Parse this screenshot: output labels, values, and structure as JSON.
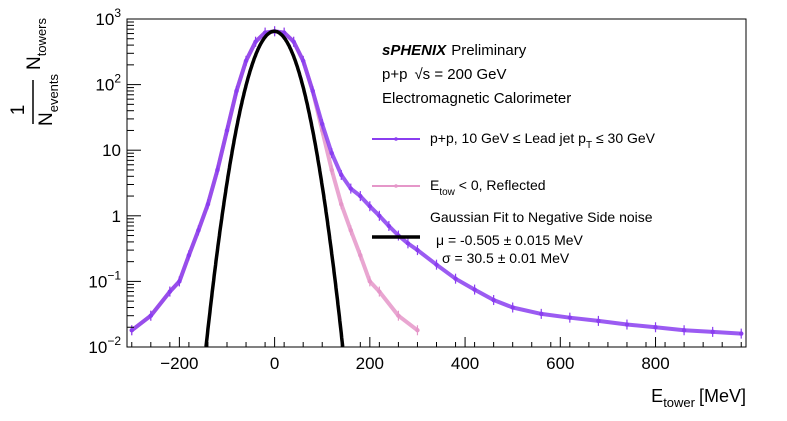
{
  "chart_data": {
    "type": "scatter",
    "title": "",
    "xlabel": {
      "main": "E",
      "sub": "tower",
      "unit": "[MeV]"
    },
    "ylabel": {
      "numerator": "1",
      "denominator_main": "N",
      "denominator_sub": "events",
      "right_main": "N",
      "right_sub": "towers"
    },
    "xlim": [
      -310,
      990
    ],
    "ylim": [
      0.01,
      1000
    ],
    "yscale": "log",
    "grid": false,
    "x_ticks": [
      {
        "value": -200,
        "label": "−200"
      },
      {
        "value": 0,
        "label": "0"
      },
      {
        "value": 200,
        "label": "200"
      },
      {
        "value": 400,
        "label": "400"
      },
      {
        "value": 600,
        "label": "600"
      },
      {
        "value": 800,
        "label": "800"
      }
    ],
    "y_ticks": [
      {
        "value": 0.01,
        "base": "10",
        "exp": "−2"
      },
      {
        "value": 0.1,
        "base": "10",
        "exp": "−1"
      },
      {
        "value": 1,
        "label": "1"
      },
      {
        "value": 10,
        "label": "10"
      },
      {
        "value": 100,
        "base": "10",
        "exp": "2"
      },
      {
        "value": 1000,
        "base": "10",
        "exp": "3"
      }
    ],
    "annotations": {
      "experiment": "sPHENIX",
      "status": "Preliminary",
      "system": "p+p",
      "sqrt": "√s",
      "energy": " = 200 GeV",
      "detector": "Electromagnetic Calorimeter"
    },
    "legend": {
      "position": "right",
      "entries": [
        {
          "kind": "pp",
          "text_a": "p+p, 10 GeV ≤ Lead jet p",
          "sub": "T",
          "text_b": " ≤ 30 GeV"
        },
        {
          "kind": "reflected",
          "text_a": "E",
          "sub": "tow",
          "text_b": " < 0, Reflected"
        },
        {
          "kind": "fit",
          "line1": "Gaussian Fit to Negative Side noise",
          "line2": "μ = -0.505 ± 0.015 MeV",
          "line3": "σ = 30.5 ± 0.01 MeV"
        }
      ]
    },
    "series": [
      {
        "name": "p+p, 10 GeV ≤ Lead jet pT ≤ 30 GeV",
        "color": "#8a3ef0",
        "x": [
          -300,
          -260,
          -220,
          -200,
          -180,
          -160,
          -140,
          -120,
          -100,
          -80,
          -60,
          -40,
          -20,
          0,
          20,
          40,
          60,
          80,
          100,
          120,
          140,
          160,
          180,
          200,
          220,
          240,
          260,
          280,
          300,
          340,
          380,
          420,
          460,
          500,
          560,
          620,
          680,
          740,
          800,
          860,
          920,
          980
        ],
        "y": [
          0.018,
          0.03,
          0.07,
          0.1,
          0.25,
          0.6,
          1.5,
          5,
          20,
          80,
          230,
          450,
          620,
          650,
          620,
          450,
          230,
          80,
          25,
          9,
          4.2,
          2.6,
          2,
          1.4,
          1.0,
          0.7,
          0.5,
          0.38,
          0.3,
          0.18,
          0.11,
          0.075,
          0.052,
          0.04,
          0.032,
          0.028,
          0.025,
          0.022,
          0.02,
          0.018,
          0.017,
          0.016
        ]
      },
      {
        "name": "Etow < 0, Reflected",
        "color": "#e597c9",
        "x": [
          -300,
          -260,
          -220,
          -200,
          -180,
          -160,
          -140,
          -120,
          -100,
          -80,
          -60,
          -40,
          -20,
          0,
          20,
          40,
          60,
          80,
          100,
          120,
          140,
          160,
          180,
          200,
          220,
          260,
          300
        ],
        "y": [
          0.018,
          0.03,
          0.07,
          0.1,
          0.25,
          0.6,
          1.5,
          5,
          20,
          80,
          230,
          450,
          620,
          650,
          620,
          450,
          230,
          80,
          20,
          5,
          1.5,
          0.6,
          0.25,
          0.1,
          0.07,
          0.03,
          0.018
        ]
      },
      {
        "name": "Gaussian Fit to Negative Side noise",
        "color": "#000000",
        "kind": "line",
        "function": "gaussian",
        "amplitude": 650,
        "mu": -0.505,
        "sigma": 30.5
      }
    ]
  }
}
